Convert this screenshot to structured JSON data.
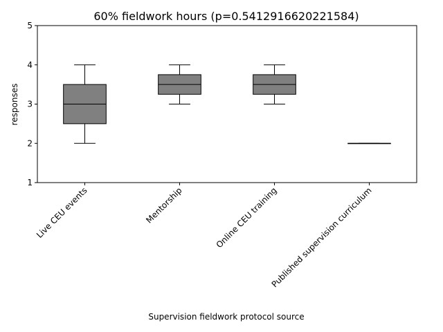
{
  "chart_data": {
    "type": "box",
    "title": "60% fieldwork hours (p=0.5412916620221584)",
    "xlabel": "Supervision fieldwork protocol source",
    "ylabel": "responses",
    "ylim": [
      1,
      5
    ],
    "yticks": [
      1,
      2,
      3,
      4,
      5
    ],
    "grid": false,
    "box_color": "#808080",
    "categories": [
      "Live CEU events",
      "Mentorship",
      "Online CEU training",
      "Published supervision curriculum"
    ],
    "boxes": [
      {
        "whisker_low": 2,
        "q1": 2.5,
        "median": 3,
        "q3": 3.5,
        "whisker_high": 4
      },
      {
        "whisker_low": 3,
        "q1": 3.25,
        "median": 3.5,
        "q3": 3.75,
        "whisker_high": 4
      },
      {
        "whisker_low": 3,
        "q1": 3.25,
        "median": 3.5,
        "q3": 3.75,
        "whisker_high": 4
      },
      {
        "whisker_low": 2,
        "q1": 2,
        "median": 2,
        "q3": 2,
        "whisker_high": 2
      }
    ]
  }
}
